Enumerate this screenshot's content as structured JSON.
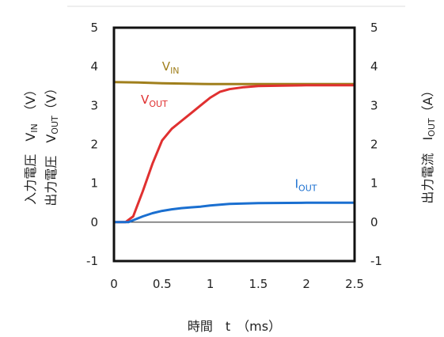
{
  "chart_data": {
    "type": "line",
    "x_axis": {
      "label": "時間　t　（ms）",
      "lim": [
        0,
        2.5
      ],
      "ticks": [
        "0",
        "0.5",
        "1",
        "1.5",
        "2",
        "2.5"
      ]
    },
    "y_left": {
      "label_line1": {
        "main": "入力電圧　V",
        "sub": "IN",
        "tail": "　（V）"
      },
      "label_line2": {
        "main": "出力電圧　V",
        "sub": "OUT",
        "tail": "（V）"
      },
      "lim": [
        -1,
        5
      ],
      "ticks": [
        "5",
        "4",
        "3",
        "2",
        "1",
        "0",
        "-1"
      ]
    },
    "y_right": {
      "label": {
        "main": "出力電流　I",
        "sub": "OUT",
        "tail": "（A）"
      },
      "lim": [
        -1,
        5
      ],
      "ticks": [
        "5",
        "4",
        "3",
        "2",
        "1",
        "0",
        "-1"
      ]
    },
    "grid": false,
    "zero_line": true,
    "series": [
      {
        "name": "V",
        "name_sub": "IN",
        "color": "#a07f1c",
        "x": [
          0,
          0.25,
          0.5,
          0.75,
          1.0,
          1.5,
          2.0,
          2.5
        ],
        "y": [
          3.6,
          3.59,
          3.57,
          3.56,
          3.55,
          3.55,
          3.55,
          3.55
        ]
      },
      {
        "name": "V",
        "name_sub": "OUT",
        "color": "#e03030",
        "x": [
          0,
          0.12,
          0.2,
          0.3,
          0.4,
          0.5,
          0.6,
          0.7,
          0.8,
          0.9,
          1.0,
          1.1,
          1.2,
          1.35,
          1.5,
          1.75,
          2.0,
          2.25,
          2.5
        ],
        "y": [
          0,
          0,
          0.15,
          0.8,
          1.5,
          2.1,
          2.4,
          2.6,
          2.8,
          3.0,
          3.2,
          3.35,
          3.42,
          3.47,
          3.5,
          3.51,
          3.52,
          3.52,
          3.52
        ]
      },
      {
        "name": "I",
        "name_sub": "OUT",
        "color": "#1a6fd0",
        "x": [
          0,
          0.15,
          0.2,
          0.3,
          0.4,
          0.5,
          0.6,
          0.7,
          0.8,
          0.9,
          1.0,
          1.2,
          1.5,
          2.0,
          2.5
        ],
        "y": [
          0,
          0,
          0.05,
          0.15,
          0.23,
          0.29,
          0.33,
          0.36,
          0.38,
          0.4,
          0.43,
          0.47,
          0.49,
          0.5,
          0.5
        ]
      }
    ]
  }
}
